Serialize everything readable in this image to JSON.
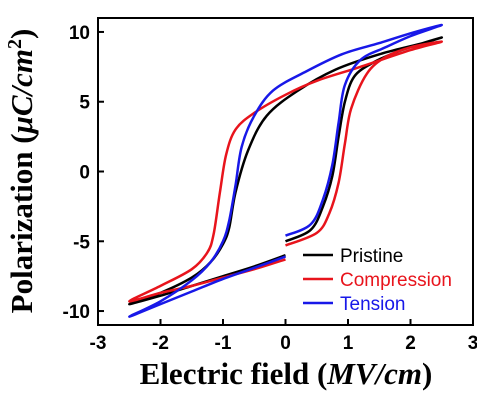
{
  "chart_data": {
    "type": "line",
    "xlabel": "Electric field (MV/cm)",
    "xlabel_parts": {
      "prefix": "Electric field (",
      "italic": "MV/cm",
      "suffix": ")"
    },
    "ylabel": "Polarization (μC/cm²)",
    "ylabel_parts": {
      "prefix": "Polarization (",
      "italic": "μC/cm",
      "sup": "2",
      "suffix": ")"
    },
    "xlim": [
      -3,
      3
    ],
    "ylim": [
      -11,
      11
    ],
    "xticks": [
      "-3",
      "-2",
      "-1",
      "0",
      "1",
      "2",
      "3"
    ],
    "yticks": [
      "10",
      "5",
      "0",
      "-5",
      "-10"
    ],
    "grid": false,
    "legend_position": "bottom-right",
    "series": [
      {
        "name": "Pristine",
        "color": "#000000",
        "x": [
          0,
          0.4,
          0.6,
          0.75,
          0.85,
          0.95,
          1.1,
          1.4,
          1.8,
          2.2,
          2.5,
          2.2,
          1.5,
          0.8,
          0.2,
          -0.3,
          -0.6,
          -0.8,
          -0.9,
          -1.0,
          -1.2,
          -1.5,
          -2.0,
          -2.5,
          -2.0,
          -1.5,
          -1.0,
          -0.5,
          0
        ],
        "y": [
          -5.0,
          -4.2,
          -2.5,
          -0.3,
          2.5,
          5.0,
          6.8,
          7.8,
          8.6,
          9.2,
          9.6,
          9.2,
          8.4,
          7.3,
          5.8,
          4.0,
          1.5,
          -1.5,
          -4.0,
          -5.2,
          -6.5,
          -7.6,
          -8.7,
          -9.5,
          -8.9,
          -8.2,
          -7.5,
          -6.8,
          -6.0
        ]
      },
      {
        "name": "Compression",
        "color": "#e8141c",
        "x": [
          0,
          0.5,
          0.7,
          0.85,
          0.95,
          1.05,
          1.3,
          1.6,
          2.0,
          2.5,
          2.0,
          1.2,
          0.5,
          0,
          -0.5,
          -0.8,
          -0.95,
          -1.05,
          -1.15,
          -1.25,
          -1.5,
          -2.0,
          -2.5,
          -2.0,
          -1.5,
          -1.0,
          -0.5,
          0
        ],
        "y": [
          -5.3,
          -4.4,
          -3.0,
          -0.8,
          2.0,
          4.5,
          7.0,
          8.2,
          8.9,
          9.3,
          8.7,
          7.5,
          6.5,
          5.5,
          4.2,
          3.0,
          1.2,
          -1.5,
          -4.5,
          -5.8,
          -7.0,
          -8.2,
          -9.3,
          -8.7,
          -8.2,
          -7.6,
          -7.0,
          -6.3
        ]
      },
      {
        "name": "Tension",
        "color": "#1818e8",
        "x": [
          0,
          0.4,
          0.6,
          0.75,
          0.85,
          0.95,
          1.2,
          1.6,
          2.0,
          2.5,
          2.0,
          1.5,
          0.9,
          0.3,
          -0.2,
          -0.5,
          -0.7,
          -0.8,
          -0.9,
          -1.0,
          -1.2,
          -1.5,
          -2.0,
          -2.5,
          -2.0,
          -1.5,
          -1.0,
          -0.5,
          0
        ],
        "y": [
          -4.6,
          -3.8,
          -2.0,
          0.5,
          3.5,
          6.2,
          8.0,
          8.9,
          9.7,
          10.5,
          9.9,
          9.2,
          8.4,
          7.1,
          5.8,
          4.0,
          1.8,
          -1.0,
          -3.5,
          -5.0,
          -6.5,
          -7.8,
          -9.3,
          -10.4,
          -9.5,
          -8.6,
          -7.7,
          -6.9,
          -6.1
        ]
      }
    ]
  }
}
